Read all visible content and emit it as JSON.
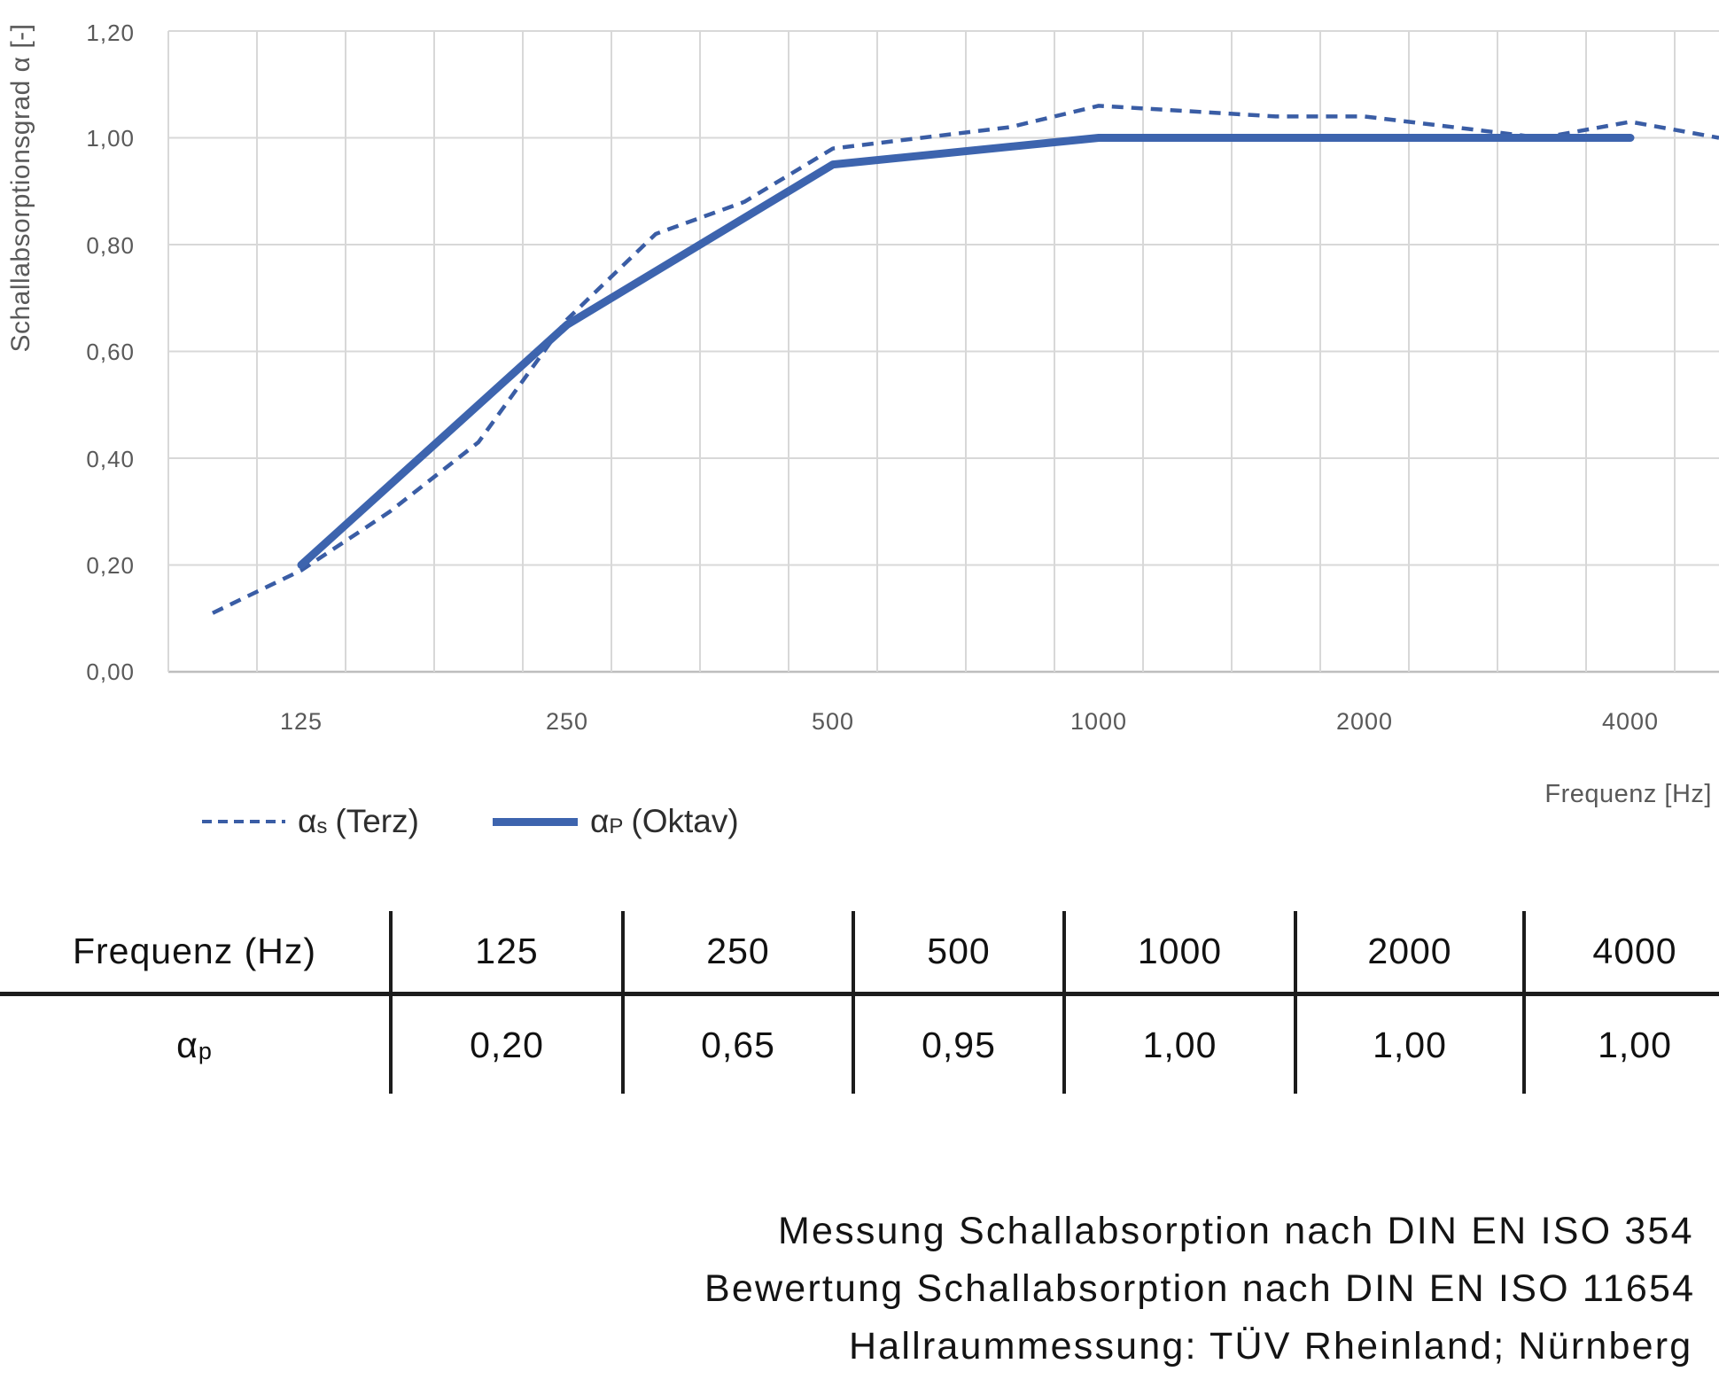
{
  "chart": {
    "y_axis_title": "Schallabsorptionsgrad α [-]",
    "x_axis_title": "Frequenz [Hz]",
    "y_ticks": [
      "1,20",
      "1,00",
      "0,80",
      "0,60",
      "0,40",
      "0,20",
      "0,00"
    ],
    "x_ticks": [
      "125",
      "250",
      "500",
      "1000",
      "2000",
      "4000"
    ]
  },
  "chart_data": {
    "type": "line",
    "title": "",
    "xlabel": "Frequenz [Hz]",
    "ylabel": "Schallabsorptionsgrad α [-]",
    "x_scale": "third-octave-band categories (logarithmic)",
    "categories": [
      100,
      125,
      160,
      200,
      250,
      315,
      400,
      500,
      630,
      800,
      1000,
      1250,
      1600,
      2000,
      2500,
      3150,
      4000,
      5000
    ],
    "x_tick_values": [
      125,
      250,
      500,
      1000,
      2000,
      4000
    ],
    "ylim": [
      0.0,
      1.2
    ],
    "y_tick_step": 0.2,
    "grid": true,
    "legend_position": "bottom-left",
    "series": [
      {
        "name": "αs (Terz)",
        "style": "dashed",
        "x": [
          100,
          125,
          160,
          200,
          250,
          315,
          400,
          500,
          630,
          800,
          1000,
          1250,
          1600,
          2000,
          2500,
          3150,
          4000,
          5000
        ],
        "values": [
          0.11,
          0.19,
          0.3,
          0.43,
          0.66,
          0.82,
          0.88,
          0.98,
          1.0,
          1.02,
          1.06,
          1.05,
          1.04,
          1.04,
          1.02,
          1.0,
          1.03,
          1.0
        ]
      },
      {
        "name": "αP (Oktav)",
        "style": "solid",
        "x": [
          125,
          250,
          500,
          1000,
          2000,
          4000
        ],
        "values": [
          0.2,
          0.65,
          0.95,
          1.0,
          1.0,
          1.0
        ]
      }
    ]
  },
  "legend": {
    "items": [
      {
        "symbol": "α",
        "sub": "s",
        "text": "(Terz)"
      },
      {
        "symbol": "α",
        "sub": "P",
        "text": "(Oktav)"
      }
    ]
  },
  "table": {
    "header_label": "Frequenz (Hz)",
    "columns": [
      "125",
      "250",
      "500",
      "1000",
      "2000",
      "4000"
    ],
    "row_symbol": "α",
    "row_sub": "p",
    "values": [
      "0,20",
      "0,65",
      "0,95",
      "1,00",
      "1,00",
      "1,00"
    ]
  },
  "footnotes": {
    "line1": "Messung Schallabsorption nach DIN EN ISO 354",
    "line2": "Bewertung Schallabsorption nach DIN EN ISO 11654",
    "line3": "Hallraummessung: TÜV Rheinland; Nürnberg"
  },
  "colors": {
    "solid_line": "#3D64AE",
    "dashed_line": "#3A5DA5",
    "gridline": "#D8D8D8",
    "axis_line": "#BEBEBE",
    "tick_text": "#595959",
    "table_line": "#1C1C1C"
  }
}
